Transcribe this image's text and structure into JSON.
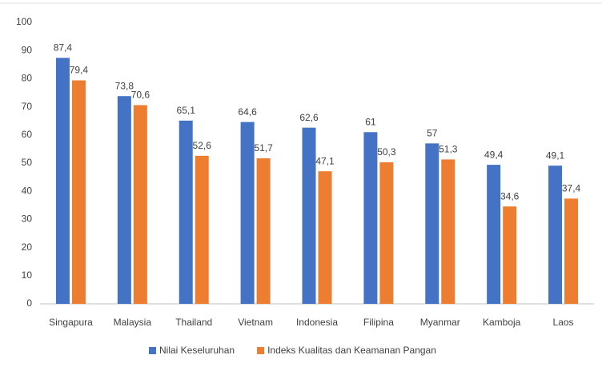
{
  "chart_data": {
    "type": "bar",
    "categories": [
      "Singapura",
      "Malaysia",
      "Thailand",
      "Vietnam",
      "Indonesia",
      "Filipina",
      "Myanmar",
      "Kamboja",
      "Laos"
    ],
    "series": [
      {
        "name": "Nilai Keseluruhan",
        "color": "#4472c4",
        "values": [
          87.4,
          73.8,
          65.1,
          64.6,
          62.6,
          61,
          57,
          49.4,
          49.1
        ],
        "value_labels": [
          "87,4",
          "73,8",
          "65,1",
          "64,6",
          "62,6",
          "61",
          "57",
          "49,4",
          "49,1"
        ]
      },
      {
        "name": "Indeks Kualitas dan Keamanan Pangan",
        "color": "#ed7d31",
        "values": [
          79.4,
          70.6,
          52.6,
          51.7,
          47.1,
          50.3,
          51.3,
          34.6,
          37.4
        ],
        "value_labels": [
          "79,4",
          "70,6",
          "52,6",
          "51,7",
          "47,1",
          "50,3",
          "51,3",
          "34,6",
          "37,4"
        ]
      }
    ],
    "ylim": [
      0,
      100
    ],
    "yticks": [
      0,
      10,
      20,
      30,
      40,
      50,
      60,
      70,
      80,
      90,
      100
    ],
    "grid": false,
    "legend": "bottom"
  }
}
